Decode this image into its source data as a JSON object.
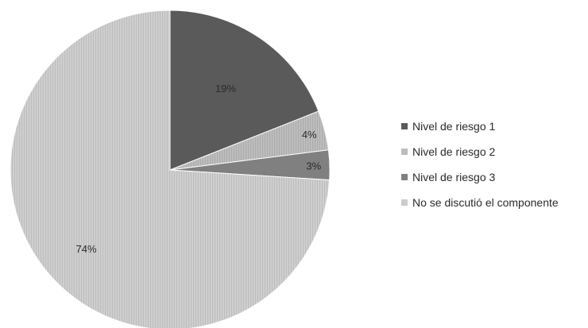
{
  "chart_data": {
    "type": "pie",
    "categories": [
      "Nivel de riesgo 1",
      "Nivel de riesgo 2",
      "Nivel de riesgo 3",
      "No se discutió el componente"
    ],
    "values": [
      19,
      4,
      3,
      74
    ],
    "labels": [
      "19%",
      "4%",
      "3%",
      "74%"
    ],
    "unit": "%",
    "start_angle": "12 o'clock",
    "direction": "clockwise",
    "legend_placement": "right",
    "colors": [
      "#5a5a5a",
      "#bdbdbd",
      "#808080",
      "#cccccc"
    ],
    "title": ""
  }
}
